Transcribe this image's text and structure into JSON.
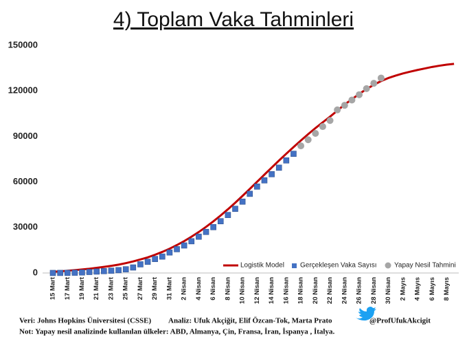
{
  "chart_data": {
    "type": "line",
    "title": "4) Toplam Vaka Tahminleri",
    "categories": [
      "15 Mart",
      null,
      "17 Mart",
      null,
      "19 Mart",
      null,
      "21 Mart",
      null,
      "23 Mart",
      null,
      "25 Mart",
      null,
      "27 Mart",
      null,
      "29 Mart",
      null,
      "31 Mart",
      null,
      "2 Nisan",
      null,
      "4 Nisan",
      null,
      "6 Nisan",
      null,
      "8 Nisan",
      null,
      "10 Nisan",
      null,
      "12 Nisan",
      null,
      "14 Nisan",
      null,
      "16 Nisan",
      null,
      "18 Nisan",
      null,
      "20 Nisan",
      null,
      "22 Nisan",
      null,
      "24 Nisan",
      null,
      "26 Nisan",
      null,
      "28 Nisan",
      null,
      "30 Nisan",
      null,
      "2 Mayıs",
      null,
      "4 Mayıs",
      null,
      "6 Mayıs",
      null,
      "8 Mayıs",
      null
    ],
    "series": [
      {
        "name": "Logistik Model",
        "type": "line",
        "color": "#c00000",
        "values": [
          800,
          1100,
          1500,
          1900,
          2300,
          2800,
          3400,
          4000,
          4700,
          5500,
          6500,
          7600,
          8900,
          10300,
          12000,
          13900,
          16000,
          18400,
          21000,
          23900,
          27000,
          30400,
          34000,
          37900,
          42000,
          46300,
          50800,
          55400,
          60100,
          64800,
          69500,
          74100,
          78600,
          83000,
          87300,
          91500,
          95500,
          99300,
          103000,
          107000,
          111000,
          114500,
          118000,
          121200,
          124000,
          126500,
          128500,
          130100,
          131500,
          132700,
          133800,
          134800,
          135800,
          136600,
          137300,
          137800
        ]
      },
      {
        "name": "Gerçekleşen Vaka Sayısı",
        "type": "square",
        "color": "#4472c4",
        "values": [
          18,
          47,
          98,
          191,
          359,
          670,
          947,
          1236,
          1529,
          1872,
          2433,
          3629,
          5698,
          7402,
          9217,
          10827,
          13531,
          15679,
          18135,
          20921,
          23934,
          27069,
          30217,
          34109,
          38226,
          42282,
          47029,
          52167,
          56956,
          61049,
          65111,
          69392,
          74193,
          78546,
          null,
          null,
          null,
          null,
          null,
          null,
          null,
          null,
          null,
          null,
          null,
          null,
          null,
          null,
          null,
          null,
          null,
          null,
          null,
          null,
          null,
          null
        ]
      },
      {
        "name": "Yapay Nesil Tahmini",
        "type": "circle",
        "color": "#a6a6a6",
        "values": [
          null,
          null,
          null,
          null,
          null,
          null,
          null,
          null,
          null,
          null,
          null,
          null,
          null,
          null,
          null,
          null,
          null,
          null,
          null,
          null,
          null,
          null,
          null,
          null,
          null,
          null,
          null,
          null,
          null,
          null,
          null,
          null,
          null,
          null,
          83800,
          87800,
          92000,
          96500,
          100500,
          107500,
          110500,
          114000,
          117500,
          121500,
          125000,
          128500,
          null,
          null,
          null,
          null,
          null,
          null,
          null,
          null,
          null,
          null
        ]
      }
    ],
    "ylim": [
      0,
      150000
    ],
    "yticks": [
      0,
      30000,
      60000,
      90000,
      120000,
      150000
    ],
    "grid": false,
    "legend": "lower right",
    "source": "Veri: Johns Hopkins Üniversitesi (CSSE)",
    "analysis": "Analiz: Ufuk Akçiğit, Elif Özcan-Tok, Marta Prato",
    "twitter": "@ProfUfukAkcigit",
    "note": "Not: Yapay nesil analizinde kullanılan ülkeler: ABD, Almanya, Çin, Fransa, İran, İspanya , İtalya."
  }
}
